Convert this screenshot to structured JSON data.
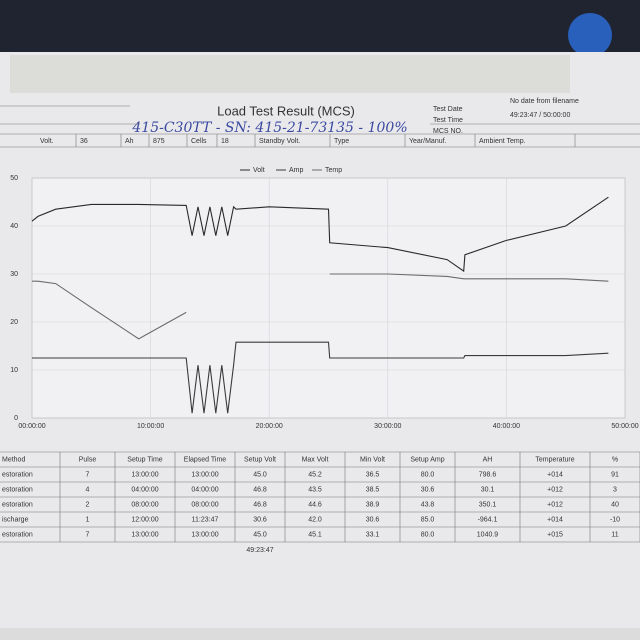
{
  "header": {
    "title": "Load Test Result (MCS)",
    "handwritten": "415-C30TT - SN: 415-21-73135 - 100%",
    "field_labels": [
      "Test Date",
      "Test Time",
      "MCS NO."
    ],
    "field_values": [
      "No date from filename",
      "49:23:47 / 50:00:00"
    ]
  },
  "info": [
    "Volt.",
    "36",
    "Ah",
    "875",
    "Cells",
    "18",
    "Standby Volt.",
    "Type",
    "Year/Manuf.",
    "Ambient Temp."
  ],
  "chart_data": {
    "type": "line",
    "x": [
      0,
      0.5,
      2,
      5,
      9,
      13,
      13.5,
      14,
      14.5,
      15,
      15.5,
      16,
      16.5,
      17,
      17.2,
      20,
      25,
      25.1,
      30,
      35,
      36.4,
      36.5,
      40,
      45,
      48.6
    ],
    "series": [
      {
        "name": "Volt",
        "color": "#2a2a2a",
        "values": [
          41,
          42,
          43.5,
          44.5,
          44.5,
          44.3,
          38,
          44,
          38,
          44,
          38,
          44,
          38,
          44,
          43.5,
          44,
          43.5,
          36.5,
          35.5,
          33,
          30.6,
          34,
          37,
          40,
          46
        ]
      },
      {
        "name": "Amp",
        "color": "#3a3a3a",
        "values": [
          12.5,
          12.5,
          12.5,
          12.5,
          12.5,
          12.5,
          1,
          11,
          1,
          11,
          1,
          11,
          1,
          11,
          15.8,
          15.8,
          15.8,
          12.5,
          12.5,
          12.5,
          12.5,
          13,
          13,
          13,
          13.5
        ]
      },
      {
        "name": "Temp",
        "color": "#6a6a6a",
        "values": [
          28.5,
          28.5,
          28,
          23,
          16.5,
          22,
          null,
          null,
          null,
          null,
          null,
          null,
          null,
          null,
          null,
          null,
          null,
          30,
          30,
          29.5,
          29,
          29,
          29,
          29,
          28.5
        ]
      }
    ],
    "xlim": [
      0,
      50
    ],
    "xticks": [
      {
        "value": 0,
        "label": "00:00:00"
      },
      {
        "value": 10,
        "label": "10:00:00"
      },
      {
        "value": 20,
        "label": "20:00:00"
      },
      {
        "value": 30,
        "label": "30:00:00"
      },
      {
        "value": 40,
        "label": "40:00:00"
      },
      {
        "value": 50,
        "label": "50:00:00"
      }
    ],
    "ylim": [
      0,
      50
    ],
    "yticks": [
      0,
      10,
      20,
      30,
      40,
      50
    ],
    "grid": true
  },
  "table": {
    "headers": [
      "Method",
      "Pulse",
      "Setup Time",
      "Elapsed Time",
      "Setup Volt",
      "Max Volt",
      "Min Volt",
      "Setup Amp",
      "AH",
      "Temperature",
      "%"
    ],
    "rows": [
      [
        "estoration",
        "7",
        "13:00:00",
        "13:00:00",
        "45.0",
        "45.2",
        "36.5",
        "80.0",
        "798.6",
        "+014",
        "91"
      ],
      [
        "estoration",
        "4",
        "04:00:00",
        "04:00:00",
        "46.8",
        "43.5",
        "38.5",
        "30.6",
        "30.1",
        "+012",
        "3"
      ],
      [
        "estoration",
        "2",
        "08:00:00",
        "08:00:00",
        "46.8",
        "44.6",
        "38.9",
        "43.8",
        "350.1",
        "+012",
        "40"
      ],
      [
        "ischarge",
        "1",
        "12:00:00",
        "11:23:47",
        "30.6",
        "42.0",
        "30.6",
        "85.0",
        "-964.1",
        "+014",
        "-10"
      ],
      [
        "estoration",
        "7",
        "13:00:00",
        "13:00:00",
        "45.0",
        "45.1",
        "33.1",
        "80.0",
        "1040.9",
        "+015",
        "11"
      ]
    ],
    "total": "49:23:47"
  }
}
